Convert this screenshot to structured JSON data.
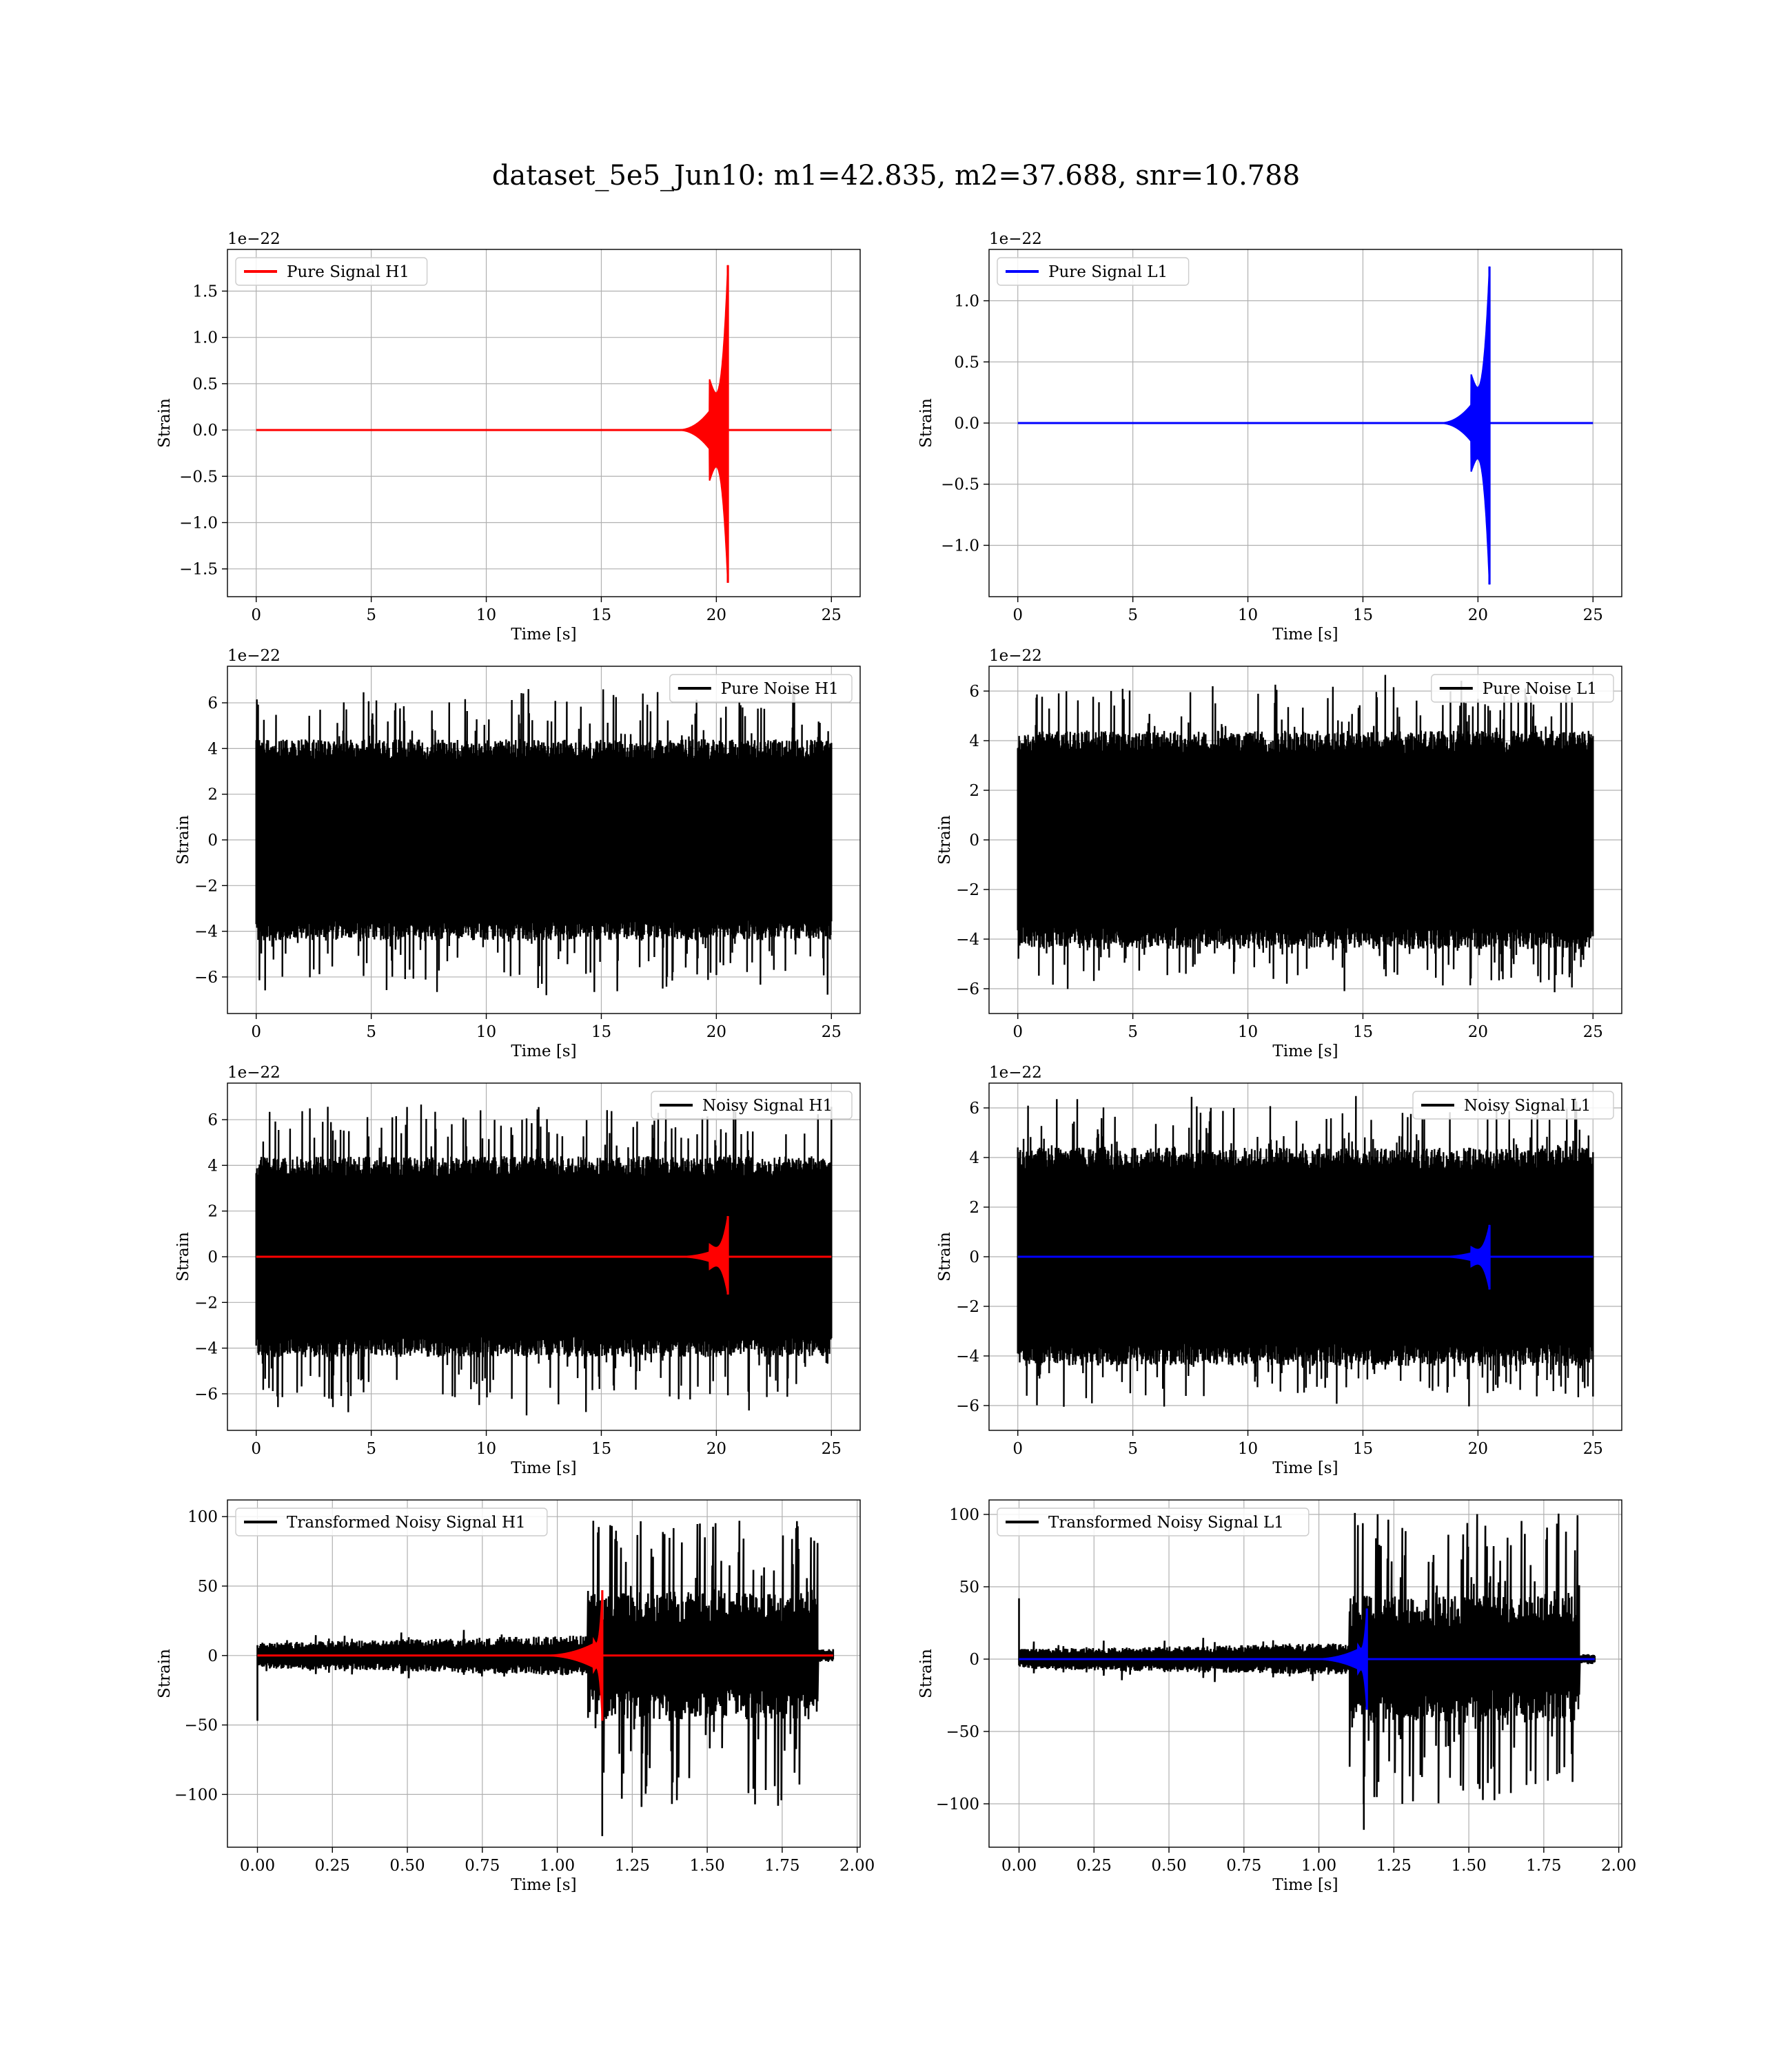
{
  "suptitle": "dataset_5e5_Jun10: m1=42.835, m2=37.688, snr=10.788",
  "colors": {
    "signal_h1": "#ff0000",
    "signal_l1": "#0000ff",
    "noise": "#000000",
    "grid": "#b0b0b0"
  },
  "chart_data": [
    {
      "type": "line",
      "id": "pure-signal-h1",
      "xlabel": "Time [s]",
      "ylabel": "Strain",
      "offset_text": "1e−22",
      "xlim": [
        -1.25,
        26.25
      ],
      "ylim": [
        -1.8,
        1.95
      ],
      "xticks": [
        0,
        5,
        10,
        15,
        20,
        25
      ],
      "xtick_labels": [
        "0",
        "5",
        "10",
        "15",
        "20",
        "25"
      ],
      "yticks": [
        -1.5,
        -1.0,
        -0.5,
        0.0,
        0.5,
        1.0,
        1.5
      ],
      "ytick_labels": [
        "−1.5",
        "−1.0",
        "−0.5",
        "0.0",
        "0.5",
        "1.0",
        "1.5"
      ],
      "legend": "top-left",
      "series": [
        {
          "name": "Pure Signal H1",
          "color": "#ff0000",
          "kind": "chirp",
          "x_start": 0,
          "x_end": 25,
          "baseline": 0,
          "onset": 18.3,
          "hump_at": 19.7,
          "hump_amp": 0.55,
          "peak_at": 20.5,
          "peak_max": 1.78,
          "peak_min": -1.65
        }
      ]
    },
    {
      "type": "line",
      "id": "pure-signal-l1",
      "xlabel": "Time [s]",
      "ylabel": "Strain",
      "offset_text": "1e−22",
      "xlim": [
        -1.25,
        26.25
      ],
      "ylim": [
        -1.42,
        1.42
      ],
      "xticks": [
        0,
        5,
        10,
        15,
        20,
        25
      ],
      "xtick_labels": [
        "0",
        "5",
        "10",
        "15",
        "20",
        "25"
      ],
      "yticks": [
        -1.0,
        -0.5,
        0.0,
        0.5,
        1.0
      ],
      "ytick_labels": [
        "−1.0",
        "−0.5",
        "0.0",
        "0.5",
        "1.0"
      ],
      "legend": "top-left",
      "series": [
        {
          "name": "Pure Signal L1",
          "color": "#0000ff",
          "kind": "chirp",
          "x_start": 0,
          "x_end": 25,
          "baseline": 0,
          "onset": 18.3,
          "hump_at": 19.7,
          "hump_amp": 0.4,
          "peak_at": 20.5,
          "peak_max": 1.28,
          "peak_min": -1.32
        }
      ]
    },
    {
      "type": "line",
      "id": "pure-noise-h1",
      "xlabel": "Time [s]",
      "ylabel": "Strain",
      "offset_text": "1e−22",
      "xlim": [
        -1.25,
        26.25
      ],
      "ylim": [
        -7.6,
        7.6
      ],
      "xticks": [
        0,
        5,
        10,
        15,
        20,
        25
      ],
      "xtick_labels": [
        "0",
        "5",
        "10",
        "15",
        "20",
        "25"
      ],
      "yticks": [
        -6,
        -4,
        -2,
        0,
        2,
        4,
        6
      ],
      "ytick_labels": [
        "−6",
        "−4",
        "−2",
        "0",
        "2",
        "4",
        "6"
      ],
      "legend": "top-right",
      "series": [
        {
          "name": "Pure Noise H1",
          "color": "#000000",
          "kind": "noise",
          "x_start": 0,
          "x_end": 25,
          "core": 3.5,
          "max": 6.9,
          "min": -7.0
        }
      ]
    },
    {
      "type": "line",
      "id": "pure-noise-l1",
      "xlabel": "Time [s]",
      "ylabel": "Strain",
      "offset_text": "1e−22",
      "xlim": [
        -1.25,
        26.25
      ],
      "ylim": [
        -7.0,
        7.0
      ],
      "xticks": [
        0,
        5,
        10,
        15,
        20,
        25
      ],
      "xtick_labels": [
        "0",
        "5",
        "10",
        "15",
        "20",
        "25"
      ],
      "yticks": [
        -6,
        -4,
        -2,
        0,
        2,
        4,
        6
      ],
      "ytick_labels": [
        "−6",
        "−4",
        "−2",
        "0",
        "2",
        "4",
        "6"
      ],
      "legend": "top-right",
      "series": [
        {
          "name": "Pure Noise L1",
          "color": "#000000",
          "kind": "noise",
          "x_start": 0,
          "x_end": 25,
          "core": 3.5,
          "max": 6.7,
          "min": -6.3
        }
      ]
    },
    {
      "type": "line",
      "id": "noisy-signal-h1",
      "xlabel": "Time [s]",
      "ylabel": "Strain",
      "offset_text": "1e−22",
      "xlim": [
        -1.25,
        26.25
      ],
      "ylim": [
        -7.6,
        7.6
      ],
      "xticks": [
        0,
        5,
        10,
        15,
        20,
        25
      ],
      "xtick_labels": [
        "0",
        "5",
        "10",
        "15",
        "20",
        "25"
      ],
      "yticks": [
        -6,
        -4,
        -2,
        0,
        2,
        4,
        6
      ],
      "ytick_labels": [
        "−6",
        "−4",
        "−2",
        "0",
        "2",
        "4",
        "6"
      ],
      "legend": "top-right",
      "series": [
        {
          "name": "Noisy Signal H1",
          "color": "#000000",
          "kind": "noise",
          "x_start": 0,
          "x_end": 25,
          "core": 3.5,
          "max": 6.9,
          "min": -7.0
        },
        {
          "color": "#ff0000",
          "kind": "chirp",
          "x_start": 0,
          "x_end": 25,
          "baseline": 0,
          "onset": 18.3,
          "hump_at": 19.7,
          "hump_amp": 0.55,
          "peak_at": 20.5,
          "peak_max": 1.78,
          "peak_min": -1.65
        }
      ]
    },
    {
      "type": "line",
      "id": "noisy-signal-l1",
      "xlabel": "Time [s]",
      "ylabel": "Strain",
      "offset_text": "1e−22",
      "xlim": [
        -1.25,
        26.25
      ],
      "ylim": [
        -7.0,
        7.0
      ],
      "xticks": [
        0,
        5,
        10,
        15,
        20,
        25
      ],
      "xtick_labels": [
        "0",
        "5",
        "10",
        "15",
        "20",
        "25"
      ],
      "yticks": [
        -6,
        -4,
        -2,
        0,
        2,
        4,
        6
      ],
      "ytick_labels": [
        "−6",
        "−4",
        "−2",
        "0",
        "2",
        "4",
        "6"
      ],
      "legend": "top-right",
      "series": [
        {
          "name": "Noisy Signal L1",
          "color": "#000000",
          "kind": "noise",
          "x_start": 0,
          "x_end": 25,
          "core": 3.5,
          "max": 6.7,
          "min": -6.3
        },
        {
          "color": "#0000ff",
          "kind": "chirp",
          "x_start": 0,
          "x_end": 25,
          "baseline": 0,
          "onset": 18.3,
          "hump_at": 19.7,
          "hump_amp": 0.4,
          "peak_at": 20.5,
          "peak_max": 1.28,
          "peak_min": -1.32
        }
      ]
    },
    {
      "type": "line",
      "id": "transformed-noisy-signal-h1",
      "xlabel": "Time [s]",
      "ylabel": "Strain",
      "offset_text": "",
      "xlim": [
        -0.1,
        2.01
      ],
      "ylim": [
        -138,
        112
      ],
      "xticks": [
        0,
        0.25,
        0.5,
        0.75,
        1.0,
        1.25,
        1.5,
        1.75,
        2.0
      ],
      "xtick_labels": [
        "0.00",
        "0.25",
        "0.50",
        "0.75",
        "1.00",
        "1.25",
        "1.50",
        "1.75",
        "2.00"
      ],
      "yticks": [
        -100,
        -50,
        0,
        50,
        100
      ],
      "ytick_labels": [
        "−100",
        "−50",
        "0",
        "50",
        "100"
      ],
      "legend": "top-left",
      "series": [
        {
          "name": "Transformed Noisy Signal H1",
          "color": "#000000",
          "kind": "whitened",
          "x_start": 0,
          "x_end": 1.92,
          "jump_at": 1.1,
          "drop_at": 1.87,
          "pre_amp": 8,
          "post_amp": 40,
          "max": 97,
          "min": -130,
          "spike_start": -47
        },
        {
          "color": "#ff0000",
          "kind": "chirp",
          "x_start": 0,
          "x_end": 1.92,
          "baseline": 0,
          "onset": 0.95,
          "hump_at": 1.12,
          "hump_amp": 12,
          "peak_at": 1.15,
          "peak_max": 47,
          "peak_min": -47
        }
      ]
    },
    {
      "type": "line",
      "id": "transformed-noisy-signal-l1",
      "xlabel": "Time [s]",
      "ylabel": "Strain",
      "offset_text": "",
      "xlim": [
        -0.1,
        2.01
      ],
      "ylim": [
        -130,
        110
      ],
      "xticks": [
        0,
        0.25,
        0.5,
        0.75,
        1.0,
        1.25,
        1.5,
        1.75,
        2.0
      ],
      "xtick_labels": [
        "0.00",
        "0.25",
        "0.50",
        "0.75",
        "1.00",
        "1.25",
        "1.50",
        "1.75",
        "2.00"
      ],
      "yticks": [
        -100,
        -50,
        0,
        50,
        100
      ],
      "ytick_labels": [
        "−100",
        "−50",
        "0",
        "50",
        "100"
      ],
      "legend": "top-left",
      "series": [
        {
          "name": "Transformed Noisy Signal L1",
          "color": "#000000",
          "kind": "whitened",
          "x_start": 0,
          "x_end": 1.92,
          "jump_at": 1.1,
          "drop_at": 1.87,
          "pre_amp": 6,
          "post_amp": 38,
          "max": 101,
          "min": -118,
          "spike_start": 42
        },
        {
          "color": "#0000ff",
          "kind": "chirp",
          "x_start": 0,
          "x_end": 1.92,
          "baseline": 0,
          "onset": 0.98,
          "hump_at": 1.13,
          "hump_amp": 10,
          "peak_at": 1.16,
          "peak_max": 35,
          "peak_min": -35
        }
      ]
    }
  ]
}
